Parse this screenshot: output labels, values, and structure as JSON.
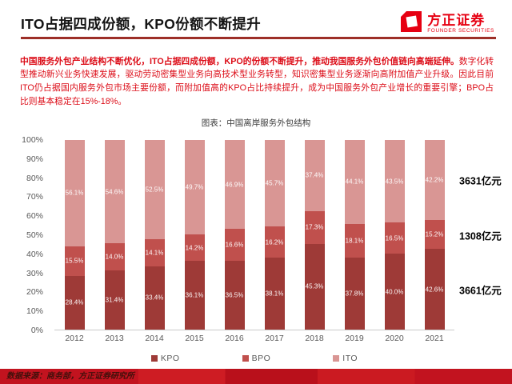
{
  "header": {
    "title": "ITO占据四成份额，KPO份额不断提升",
    "logo": {
      "name": "方正证券",
      "subtitle": "FOUNDER SECURITIES",
      "color": "#e60012"
    }
  },
  "summary": {
    "lead": "中国服务外包产业结构不断优化，ITO占据四成份额，KPO的份额不断提升，推动我国服务外包价值链向高端延伸。",
    "body": "数字化转型推动新兴业务快速发展，驱动劳动密集型业务向高技术型业务转型，知识密集型业务逐渐向高附加值产业升级。因此目前ITO仍占据国内服务外包市场主要份额，而附加值高的KPO占比持续提升，成为中国服务外包产业增长的重要引擎；BPO占比则基本稳定在15%-18%。"
  },
  "chart_data": {
    "type": "bar",
    "stacked": true,
    "title": "图表：中国离岸服务外包结构",
    "categories": [
      "2012",
      "2013",
      "2014",
      "2015",
      "2016",
      "2017",
      "2018",
      "2019",
      "2020",
      "2021"
    ],
    "series": [
      {
        "name": "KPO",
        "color": "#9e3a37",
        "values": [
          28.4,
          31.4,
          33.4,
          36.1,
          36.5,
          38.1,
          45.3,
          37.8,
          40.0,
          42.6
        ]
      },
      {
        "name": "BPO",
        "color": "#c0504d",
        "values": [
          15.5,
          14.0,
          14.1,
          14.2,
          16.6,
          16.2,
          17.3,
          18.1,
          16.5,
          15.2
        ]
      },
      {
        "name": "ITO",
        "color": "#d99694",
        "values": [
          56.1,
          54.6,
          52.5,
          49.7,
          46.9,
          45.7,
          37.4,
          44.1,
          43.5,
          42.2
        ]
      }
    ],
    "unit": "%",
    "ylim": [
      0,
      100
    ],
    "y_ticks": [
      "0%",
      "10%",
      "20%",
      "30%",
      "40%",
      "50%",
      "60%",
      "70%",
      "80%",
      "90%",
      "100%"
    ],
    "grid": false,
    "legend_position": "bottom",
    "annotations": [
      {
        "series": "ITO",
        "label": "3631亿元"
      },
      {
        "series": "BPO",
        "label": "1308亿元"
      },
      {
        "series": "KPO",
        "label": "3661亿元"
      }
    ]
  },
  "footer": {
    "source": "数据来源：商务部，方正证券研究所"
  },
  "colors": {
    "title_rule": "#9d2f28",
    "summary_text": "#dc0d18",
    "footer_band": "#c2131f",
    "axis_text": "#595959"
  }
}
